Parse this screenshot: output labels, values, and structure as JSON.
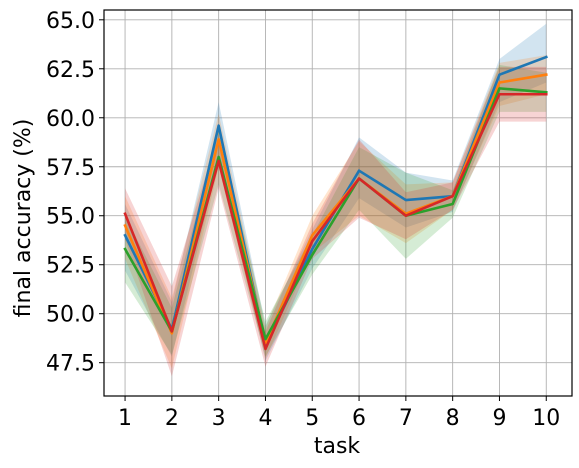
{
  "chart_data": {
    "type": "line",
    "title": "",
    "xlabel": "task",
    "ylabel": "final accuracy (%)",
    "x": [
      1,
      2,
      3,
      4,
      5,
      6,
      7,
      8,
      9,
      10
    ],
    "x_ticks": [
      "1",
      "2",
      "3",
      "4",
      "5",
      "6",
      "7",
      "8",
      "9",
      "10"
    ],
    "xlim": [
      0.55,
      10.55
    ],
    "y_ticks": [
      47.5,
      50.0,
      52.5,
      55.0,
      57.5,
      60.0,
      62.5,
      65.0
    ],
    "y_tick_labels": [
      "47.5",
      "50.0",
      "52.5",
      "55.0",
      "57.5",
      "60.0",
      "62.5",
      "65.0"
    ],
    "ylim": [
      45.8,
      65.5
    ],
    "grid": true,
    "legend": "none",
    "series": [
      {
        "color": "#1f77b4",
        "values": [
          54.0,
          49.2,
          59.6,
          48.4,
          53.3,
          57.3,
          55.8,
          56.0,
          62.2,
          63.1
        ],
        "lower": [
          52.2,
          47.8,
          57.8,
          47.6,
          52.3,
          55.9,
          54.4,
          55.2,
          60.8,
          61.8
        ],
        "upper": [
          55.6,
          50.6,
          60.8,
          49.4,
          54.3,
          59.0,
          57.2,
          56.8,
          63.0,
          64.8
        ]
      },
      {
        "color": "#ff7f0e",
        "values": [
          54.5,
          49.0,
          58.9,
          48.5,
          54.0,
          56.9,
          55.1,
          56.0,
          61.8,
          62.2
        ],
        "lower": [
          52.8,
          47.2,
          57.5,
          47.7,
          53.1,
          55.0,
          53.6,
          55.3,
          60.6,
          61.2
        ],
        "upper": [
          56.0,
          50.8,
          60.2,
          49.3,
          55.0,
          58.8,
          56.6,
          56.7,
          62.8,
          63.2
        ]
      },
      {
        "color": "#2ca02c",
        "values": [
          53.3,
          49.1,
          58.0,
          48.7,
          53.0,
          56.9,
          55.0,
          55.6,
          61.5,
          61.3
        ],
        "lower": [
          51.6,
          47.9,
          56.6,
          47.8,
          52.0,
          55.3,
          52.8,
          54.9,
          60.3,
          60.3
        ],
        "upper": [
          55.0,
          50.3,
          59.4,
          49.6,
          54.0,
          58.5,
          57.2,
          56.3,
          62.7,
          62.3
        ]
      },
      {
        "color": "#d62728",
        "values": [
          55.1,
          49.1,
          57.8,
          48.2,
          53.7,
          56.9,
          55.0,
          56.0,
          61.2,
          61.2
        ],
        "lower": [
          53.8,
          46.8,
          56.4,
          47.3,
          52.8,
          54.9,
          53.8,
          55.3,
          59.8,
          59.8
        ],
        "upper": [
          56.4,
          51.4,
          59.2,
          49.1,
          54.6,
          58.9,
          56.2,
          56.7,
          62.6,
          62.6
        ]
      }
    ]
  }
}
